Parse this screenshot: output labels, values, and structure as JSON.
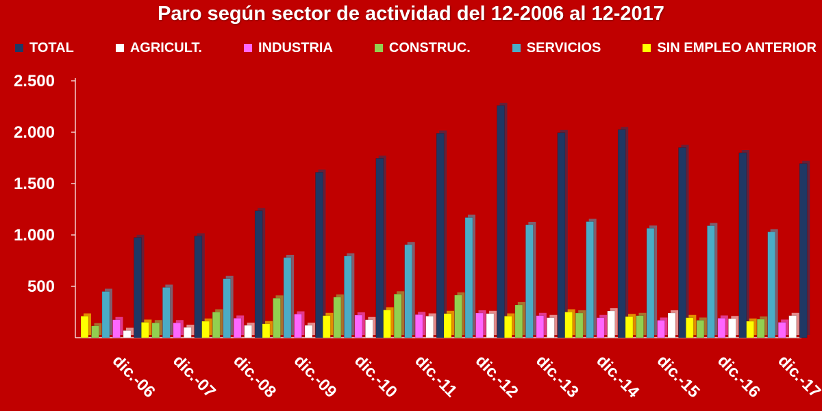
{
  "chart_data": {
    "type": "bar",
    "title": "Paro según sector de actividad del 12-2006 al 12-2017",
    "xlabel": "",
    "ylabel": "",
    "ylim": [
      0,
      2500
    ],
    "yticks": [
      500,
      1000,
      1500,
      2000,
      2500
    ],
    "ytick_labels": [
      "500",
      "1.000",
      "1.500",
      "2.000",
      "2.500"
    ],
    "grid": false,
    "legend_position": "top",
    "categories": [
      "dic.-06",
      "dic.-07",
      "dic.-08",
      "dic.-09",
      "dic.-10",
      "dic.-11",
      "dic.-12",
      "dic.-13",
      "dic.-14",
      "dic.-15",
      "dic.-16",
      "dic.-17"
    ],
    "legend_order": [
      "TOTAL",
      "AGRICULT.",
      "INDUSTRIA",
      "CONSTRUC.",
      "SERVICIOS",
      "SIN EMPLEO ANTERIOR"
    ],
    "series": [
      {
        "name": "SIN EMPLEO ANTERIOR",
        "color": "#ffff00",
        "values": [
          210,
          150,
          160,
          135,
          215,
          270,
          235,
          210,
          250,
          205,
          195,
          160
        ]
      },
      {
        "name": "CONSTRUC.",
        "color": "#92d050",
        "values": [
          115,
          145,
          250,
          385,
          395,
          425,
          415,
          320,
          240,
          215,
          170,
          180
        ]
      },
      {
        "name": "SERVICIOS",
        "color": "#4bacc6",
        "values": [
          450,
          490,
          575,
          780,
          795,
          905,
          1170,
          1100,
          1130,
          1065,
          1090,
          1030
        ]
      },
      {
        "name": "INDUSTRIA",
        "color": "#ff66ff",
        "values": [
          175,
          145,
          190,
          230,
          220,
          225,
          240,
          215,
          195,
          170,
          190,
          150
        ]
      },
      {
        "name": "AGRICULT.",
        "color": "#ffffff",
        "values": [
          70,
          100,
          120,
          120,
          175,
          210,
          235,
          195,
          260,
          240,
          185,
          215
        ]
      },
      {
        "name": "TOTAL",
        "color": "#1f3864",
        "values": [
          975,
          990,
          1235,
          1610,
          1745,
          1990,
          2260,
          1995,
          2025,
          1850,
          1800,
          1695
        ]
      }
    ]
  }
}
